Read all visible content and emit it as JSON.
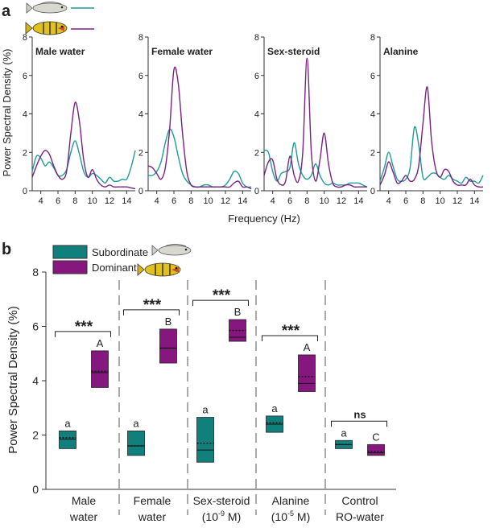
{
  "colors": {
    "subordinate": "#1f9c95",
    "dominant": "#7a2182",
    "box_sub": "#11807c",
    "box_dom": "#85177e"
  },
  "panel_a_label": "a",
  "panel_b_label": "b",
  "chart_data": [
    {
      "type": "line",
      "panel": "a",
      "xlabel": "Frequency (Hz)",
      "ylabel": "Power Spectral Density (%)",
      "ylim": [
        0,
        8
      ],
      "yticks": [
        "0",
        "2",
        "4",
        "6",
        "8"
      ],
      "xlim": [
        3,
        15
      ],
      "panels": [
        {
          "title": "Male water",
          "xticks": [
            "4",
            "6",
            "8",
            "10",
            "12",
            "14"
          ],
          "xtick_values": [
            4,
            6,
            8,
            10,
            12,
            14
          ],
          "series": [
            {
              "name": "Subordinate",
              "x": [
                3,
                3.5,
                4,
                4.5,
                5,
                5.5,
                6,
                6.5,
                7,
                7.5,
                8,
                8.5,
                9,
                9.5,
                10,
                10.5,
                11,
                11.5,
                12,
                12.5,
                13,
                13.5,
                14,
                14.5,
                15
              ],
              "values": [
                1.0,
                1.8,
                1.7,
                1.3,
                1.5,
                1.2,
                0.8,
                0.8,
                1.1,
                2.0,
                2.6,
                1.9,
                1.0,
                0.7,
                0.9,
                0.8,
                0.6,
                0.4,
                0.7,
                0.5,
                0.5,
                0.6,
                0.6,
                1.2,
                2.1
              ]
            },
            {
              "name": "Dominant",
              "x": [
                3,
                3.5,
                4,
                4.5,
                5,
                5.5,
                6,
                6.5,
                7,
                7.5,
                8,
                8.5,
                9,
                9.5,
                10,
                10.5,
                11,
                11.5,
                12,
                12.5,
                13,
                13.5,
                14,
                14.5,
                15
              ],
              "values": [
                0.7,
                1.3,
                1.8,
                2.1,
                1.9,
                1.3,
                0.8,
                0.6,
                1.0,
                3.0,
                4.6,
                3.6,
                1.6,
                0.7,
                1.1,
                0.6,
                0.3,
                0.2,
                0.3,
                0.2,
                0.2,
                0.2,
                0.2,
                0.15,
                0.1
              ]
            }
          ]
        },
        {
          "title": "Female water",
          "xticks": [
            "4",
            "6",
            "8",
            "10",
            "12",
            "14"
          ],
          "xtick_values": [
            4,
            6,
            8,
            10,
            12,
            14
          ],
          "series": [
            {
              "name": "Subordinate",
              "x": [
                3,
                3.5,
                4,
                4.5,
                5,
                5.5,
                6,
                6.5,
                7,
                7.5,
                8,
                8.5,
                9,
                9.5,
                10,
                10.5,
                11,
                11.5,
                12,
                12.5,
                13,
                13.5,
                14,
                14.5,
                15
              ],
              "values": [
                0.8,
                0.8,
                1.0,
                1.5,
                2.5,
                3.2,
                2.8,
                1.8,
                0.9,
                0.5,
                0.3,
                0.2,
                0.2,
                0.3,
                0.3,
                0.2,
                0.2,
                0.2,
                0.3,
                0.6,
                1.0,
                0.9,
                0.4,
                0.2,
                0.2
              ]
            },
            {
              "name": "Dominant",
              "x": [
                3,
                3.5,
                4,
                4.5,
                5,
                5.5,
                6,
                6.5,
                7,
                7.5,
                8,
                8.5,
                9,
                9.5,
                10,
                10.5,
                11,
                11.5,
                12,
                12.5,
                13,
                13.5,
                14,
                14.5,
                15
              ],
              "values": [
                1.3,
                1.2,
                0.9,
                0.6,
                1.2,
                3.2,
                6.3,
                5.6,
                3.0,
                1.0,
                0.3,
                0.2,
                0.2,
                0.2,
                0.2,
                0.2,
                0.2,
                0.2,
                0.2,
                0.2,
                0.4,
                0.5,
                0.2,
                0.2,
                0.1
              ]
            }
          ]
        },
        {
          "title": "Sex-steroid",
          "xticks": [
            "4",
            "6",
            "8",
            "10",
            "12",
            "14"
          ],
          "xtick_values": [
            4,
            6,
            8,
            10,
            12,
            14
          ],
          "series": [
            {
              "name": "Subordinate",
              "x": [
                3,
                3.5,
                4,
                4.5,
                5,
                5.5,
                6,
                6.5,
                7,
                7.5,
                8,
                8.5,
                9,
                9.5,
                10,
                10.5,
                11,
                11.5,
                12,
                12.5,
                13,
                13.5,
                14,
                14.5,
                15
              ],
              "values": [
                2.1,
                2.0,
                1.0,
                0.5,
                0.9,
                1.0,
                1.2,
                2.5,
                1.4,
                0.8,
                0.6,
                0.8,
                1.4,
                0.8,
                0.4,
                0.3,
                0.4,
                0.3,
                0.3,
                0.3,
                0.4,
                0.4,
                0.4,
                0.3,
                0.2
              ]
            },
            {
              "name": "Dominant",
              "x": [
                3,
                3.5,
                4,
                4.5,
                5,
                5.5,
                6,
                6.5,
                7,
                7.5,
                8,
                8.5,
                9,
                9.5,
                10,
                10.5,
                11,
                11.5,
                12,
                12.5,
                13,
                13.5,
                14,
                14.5,
                15
              ],
              "values": [
                0.8,
                1.5,
                1.6,
                0.6,
                0.3,
                0.5,
                1.8,
                0.8,
                0.5,
                2.0,
                6.9,
                2.0,
                0.5,
                1.6,
                3.0,
                1.4,
                0.4,
                0.2,
                0.2,
                0.3,
                0.3,
                0.2,
                0.2,
                0.2,
                0.2
              ]
            }
          ]
        },
        {
          "title": "Alanine",
          "xticks": [
            "4",
            "6",
            "8",
            "10",
            "12",
            "14"
          ],
          "xtick_values": [
            4,
            6,
            8,
            10,
            12,
            14
          ],
          "series": [
            {
              "name": "Subordinate",
              "x": [
                3,
                3.5,
                4,
                4.5,
                5,
                5.5,
                6,
                6.5,
                7,
                7.5,
                8,
                8.5,
                9,
                9.5,
                10,
                10.5,
                11,
                11.5,
                12,
                12.5,
                13,
                13.5,
                14,
                14.5,
                15
              ],
              "values": [
                0.5,
                1.2,
                2.0,
                1.3,
                0.6,
                0.5,
                0.6,
                1.2,
                3.3,
                2.4,
                0.7,
                0.7,
                0.9,
                0.9,
                0.7,
                0.6,
                0.8,
                0.6,
                0.5,
                0.4,
                0.7,
                0.5,
                0.5,
                0.4,
                0.8
              ]
            },
            {
              "name": "Dominant",
              "x": [
                3,
                3.5,
                4,
                4.5,
                5,
                5.5,
                6,
                6.5,
                7,
                7.5,
                8,
                8.5,
                9,
                9.5,
                10,
                10.5,
                11,
                11.5,
                12,
                12.5,
                13,
                13.5,
                14,
                14.5,
                15
              ],
              "values": [
                0.3,
                0.8,
                1.5,
                1.0,
                0.4,
                0.5,
                0.8,
                0.5,
                0.6,
                1.3,
                3.5,
                5.4,
                2.6,
                1.1,
                0.7,
                1.1,
                1.0,
                0.5,
                0.3,
                0.3,
                0.3,
                0.6,
                0.3,
                0.2,
                0.2
              ]
            }
          ]
        }
      ]
    },
    {
      "type": "box",
      "panel": "b",
      "ylabel": "Power Spectral Density (%)",
      "ylim": [
        0,
        8
      ],
      "yticks": [
        "0",
        "2",
        "4",
        "6",
        "8"
      ],
      "legend": [
        {
          "name": "Subordinate"
        },
        {
          "name": "Dominant"
        }
      ],
      "legend_position": "top-left",
      "groups": [
        {
          "label_lines": [
            "Male",
            "water"
          ],
          "sig": "***",
          "sub": {
            "q1": 1.5,
            "median": 1.85,
            "mean": 1.9,
            "q3": 2.15,
            "letter": "a"
          },
          "dom": {
            "q1": 3.75,
            "median": 4.3,
            "mean": 4.35,
            "q3": 5.1,
            "letter": "A"
          }
        },
        {
          "label_lines": [
            "Female",
            "water"
          ],
          "sig": "***",
          "sub": {
            "q1": 1.25,
            "median": 1.6,
            "mean": 1.6,
            "q3": 2.15,
            "letter": "a"
          },
          "dom": {
            "q1": 4.65,
            "median": 5.2,
            "mean": 5.2,
            "q3": 5.9,
            "letter": "B"
          }
        },
        {
          "label_lines": [
            "Sex-steroid",
            "(10",
            "-9",
            " M)"
          ],
          "sig": "***",
          "sub": {
            "q1": 1.0,
            "median": 1.45,
            "mean": 1.7,
            "q3": 2.65,
            "letter": "a"
          },
          "dom": {
            "q1": 5.45,
            "median": 5.6,
            "mean": 5.85,
            "q3": 6.25,
            "letter": "B"
          }
        },
        {
          "label_lines": [
            "Alanine",
            "(10",
            "-5",
            " M)"
          ],
          "sig": "***",
          "sub": {
            "q1": 2.1,
            "median": 2.4,
            "mean": 2.45,
            "q3": 2.7,
            "letter": "a"
          },
          "dom": {
            "q1": 3.6,
            "median": 3.9,
            "mean": 4.15,
            "q3": 4.95,
            "letter": "A"
          }
        },
        {
          "label_lines": [
            "Control",
            "RO-water"
          ],
          "sig": "ns",
          "sub": {
            "q1": 1.5,
            "median": 1.65,
            "mean": 1.65,
            "q3": 1.8,
            "letter": "a"
          },
          "dom": {
            "q1": 1.25,
            "median": 1.35,
            "mean": 1.4,
            "q3": 1.65,
            "letter": "C"
          }
        }
      ]
    }
  ]
}
